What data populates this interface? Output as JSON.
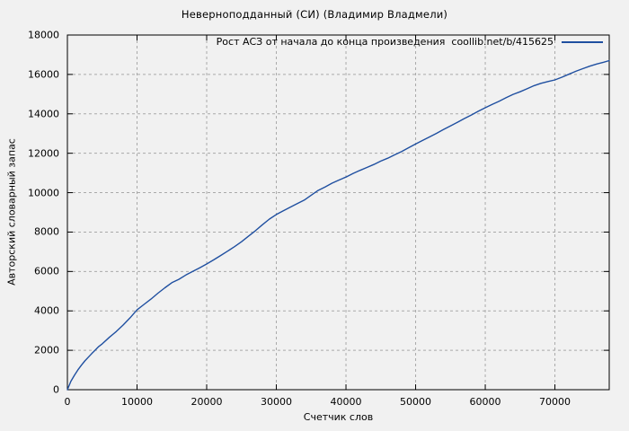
{
  "title": "Неверноподданный (СИ) (Владимир Владмели)",
  "axes": {
    "xlabel": "Счетчик слов",
    "ylabel": "Авторский словарный запас"
  },
  "legend": {
    "label": "Рост АСЗ от начала до конца произведения  coollib.net/b/415625"
  },
  "colors": {
    "background": "#f1f1f1",
    "border": "#000000",
    "grid": "#a9a9a9",
    "text": "#000000",
    "line": "#1f4fa0"
  },
  "chart_data": {
    "type": "line",
    "title": "Неверноподданный (СИ) (Владимир Владмели)",
    "xlabel": "Счетчик слов",
    "ylabel": "Авторский словарный запас",
    "legend_entry": "Рост АСЗ от начала до конца произведения  coollib.net/b/415625",
    "legend_position": "top-right-inside",
    "grid": "dashed",
    "xlim": [
      0,
      77800
    ],
    "ylim": [
      0,
      18000
    ],
    "xticks": [
      0,
      10000,
      20000,
      30000,
      40000,
      50000,
      60000,
      70000
    ],
    "yticks": [
      0,
      2000,
      4000,
      6000,
      8000,
      10000,
      12000,
      14000,
      16000,
      18000
    ],
    "series": [
      {
        "name": "Рост АСЗ от начала до конца произведения  coollib.net/b/415625",
        "color": "#1f4fa0",
        "points": [
          [
            0,
            0
          ],
          [
            500,
            430
          ],
          [
            1000,
            730
          ],
          [
            1500,
            1000
          ],
          [
            2000,
            1240
          ],
          [
            2500,
            1460
          ],
          [
            3000,
            1650
          ],
          [
            3500,
            1830
          ],
          [
            4000,
            2010
          ],
          [
            4500,
            2190
          ],
          [
            5000,
            2330
          ],
          [
            6000,
            2650
          ],
          [
            7000,
            2950
          ],
          [
            8000,
            3280
          ],
          [
            9000,
            3650
          ],
          [
            10000,
            4050
          ],
          [
            11000,
            4330
          ],
          [
            12000,
            4600
          ],
          [
            13000,
            4900
          ],
          [
            14000,
            5170
          ],
          [
            15000,
            5430
          ],
          [
            16000,
            5600
          ],
          [
            17000,
            5820
          ],
          [
            18000,
            6000
          ],
          [
            19000,
            6190
          ],
          [
            20000,
            6380
          ],
          [
            21000,
            6590
          ],
          [
            22000,
            6810
          ],
          [
            23000,
            7030
          ],
          [
            24000,
            7260
          ],
          [
            25000,
            7510
          ],
          [
            26000,
            7790
          ],
          [
            27000,
            8070
          ],
          [
            28000,
            8370
          ],
          [
            29000,
            8660
          ],
          [
            30000,
            8890
          ],
          [
            31000,
            9080
          ],
          [
            32000,
            9260
          ],
          [
            33000,
            9440
          ],
          [
            34000,
            9620
          ],
          [
            35000,
            9870
          ],
          [
            36000,
            10110
          ],
          [
            37000,
            10290
          ],
          [
            38000,
            10480
          ],
          [
            39000,
            10640
          ],
          [
            40000,
            10790
          ],
          [
            41000,
            10970
          ],
          [
            42000,
            11130
          ],
          [
            43000,
            11280
          ],
          [
            44000,
            11430
          ],
          [
            45000,
            11600
          ],
          [
            46000,
            11750
          ],
          [
            47000,
            11920
          ],
          [
            48000,
            12090
          ],
          [
            49000,
            12280
          ],
          [
            50000,
            12470
          ],
          [
            51000,
            12650
          ],
          [
            52000,
            12830
          ],
          [
            53000,
            13010
          ],
          [
            54000,
            13200
          ],
          [
            55000,
            13390
          ],
          [
            56000,
            13570
          ],
          [
            57000,
            13760
          ],
          [
            58000,
            13940
          ],
          [
            59000,
            14130
          ],
          [
            60000,
            14310
          ],
          [
            61000,
            14480
          ],
          [
            62000,
            14640
          ],
          [
            63000,
            14820
          ],
          [
            64000,
            14990
          ],
          [
            65000,
            15120
          ],
          [
            66000,
            15270
          ],
          [
            67000,
            15430
          ],
          [
            68000,
            15550
          ],
          [
            69000,
            15640
          ],
          [
            70000,
            15720
          ],
          [
            71000,
            15860
          ],
          [
            72000,
            16010
          ],
          [
            73000,
            16160
          ],
          [
            74000,
            16290
          ],
          [
            75000,
            16420
          ],
          [
            76000,
            16530
          ],
          [
            77000,
            16620
          ],
          [
            77800,
            16700
          ]
        ]
      }
    ]
  }
}
